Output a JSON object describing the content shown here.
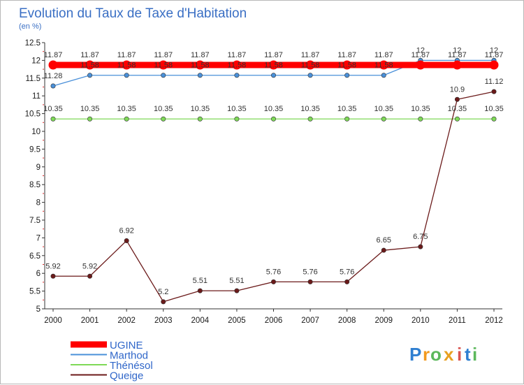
{
  "chart_data": {
    "type": "line",
    "title": "Evolution du Taux de Taxe d'Habitation",
    "subtitle": "(en %)",
    "x": [
      "2000",
      "2001",
      "2002",
      "2003",
      "2004",
      "2005",
      "2006",
      "2007",
      "2008",
      "2009",
      "2010",
      "2011",
      "2012"
    ],
    "ylim": [
      5,
      12.5
    ],
    "y_ticks": [
      "5",
      "5.5",
      "6",
      "6.5",
      "7",
      "7.5",
      "8",
      "8.5",
      "9",
      "9.5",
      "10",
      "10.5",
      "11",
      "11.5",
      "12",
      "12.5"
    ],
    "grid": false,
    "legend_position": "bottom-left",
    "series": [
      {
        "name": "UGINE",
        "color": "#ff0000",
        "values": [
          11.87,
          11.87,
          11.87,
          11.87,
          11.87,
          11.87,
          11.87,
          11.87,
          11.87,
          11.87,
          11.87,
          11.87,
          11.87
        ],
        "labels": [
          "11.87",
          "11.87",
          "11.87",
          "11.87",
          "11.87",
          "11.87",
          "11.87",
          "11.87",
          "11.87",
          "11.87",
          "11.87",
          "11.87",
          "11.87"
        ]
      },
      {
        "name": "Marthod",
        "color": "#4a90d9",
        "values": [
          11.28,
          11.58,
          11.58,
          11.58,
          11.58,
          11.58,
          11.58,
          11.58,
          11.58,
          11.58,
          12,
          12,
          12
        ],
        "labels": [
          "11.28",
          "11.58",
          "11.58",
          "11.58",
          "11.58",
          "11.58",
          "11.58",
          "11.58",
          "11.58",
          "11.58",
          "12",
          "12",
          "12"
        ]
      },
      {
        "name": "Thénésol",
        "color": "#7ed957",
        "values": [
          10.35,
          10.35,
          10.35,
          10.35,
          10.35,
          10.35,
          10.35,
          10.35,
          10.35,
          10.35,
          10.35,
          10.35,
          10.35
        ],
        "labels": [
          "10.35",
          "10.35",
          "10.35",
          "10.35",
          "10.35",
          "10.35",
          "10.35",
          "10.35",
          "10.35",
          "10.35",
          "10.35",
          "10.35",
          "10.35"
        ]
      },
      {
        "name": "Queige",
        "color": "#6b1a1a",
        "values": [
          5.92,
          5.92,
          6.92,
          5.2,
          5.51,
          5.51,
          5.76,
          5.76,
          5.76,
          6.65,
          6.75,
          10.9,
          11.12
        ],
        "labels": [
          "5.92",
          "5.92",
          "6.92",
          "5.2",
          "5.51",
          "5.51",
          "5.76",
          "5.76",
          "5.76",
          "6.65",
          "6.75",
          "10.9",
          "11.12"
        ]
      }
    ]
  },
  "logo": {
    "letters": [
      "P",
      "r",
      "o",
      "x",
      "i",
      "t",
      "i"
    ],
    "colors": [
      "#2f7fd1",
      "#f29a1f",
      "#5cb85c",
      "#e8a020",
      "#d9534f",
      "#2f7fd1",
      "#5cb85c"
    ]
  }
}
